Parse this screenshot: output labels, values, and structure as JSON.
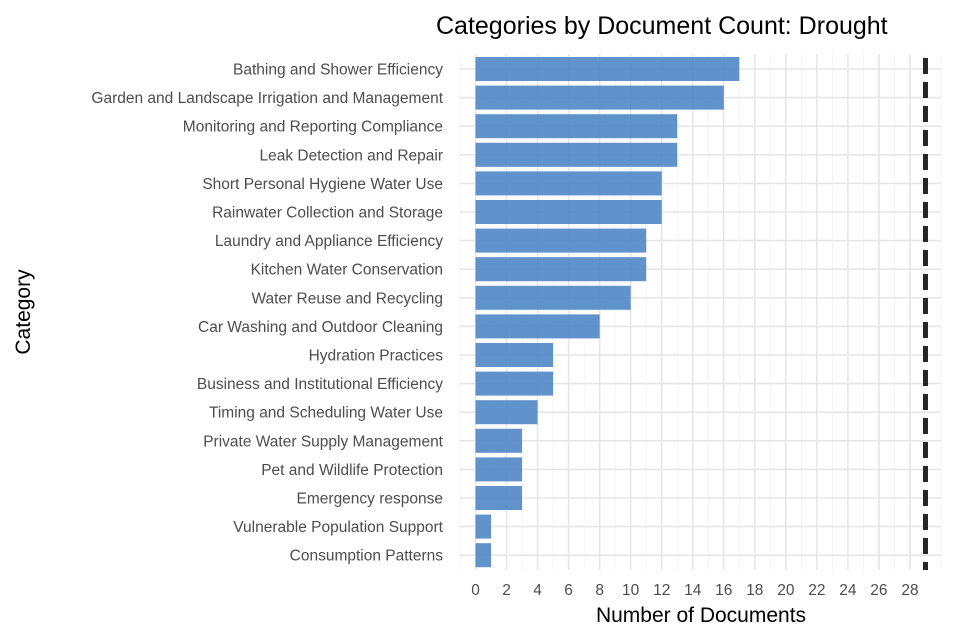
{
  "chart_data": {
    "type": "bar",
    "orientation": "horizontal",
    "title": "Categories by Document Count: Drought",
    "xlabel": "Number of Documents",
    "ylabel": "Category",
    "categories": [
      "Bathing and Shower Efficiency",
      "Garden and Landscape Irrigation and Management",
      "Monitoring and Reporting Compliance",
      "Leak Detection and Repair",
      "Short Personal Hygiene Water Use",
      "Rainwater Collection and Storage",
      "Laundry and Appliance Efficiency",
      "Kitchen Water Conservation",
      "Water Reuse and Recycling",
      "Car Washing and Outdoor Cleaning",
      "Hydration Practices",
      "Business and Institutional Efficiency",
      "Timing and Scheduling Water Use",
      "Private Water Supply Management",
      "Pet and Wildlife Protection",
      "Emergency response",
      "Vulnerable Population Support",
      "Consumption Patterns"
    ],
    "values": [
      17,
      16,
      13,
      13,
      12,
      12,
      11,
      11,
      10,
      8,
      5,
      5,
      4,
      3,
      3,
      3,
      1,
      1
    ],
    "xticks": [
      0,
      2,
      4,
      6,
      8,
      10,
      12,
      14,
      16,
      18,
      20,
      22,
      24,
      26,
      28
    ],
    "xlim": [
      -1.0,
      30.0
    ],
    "reference_line": 29,
    "grid": true,
    "bar_color": "#4f86c6",
    "reference_line_color": "#262626"
  }
}
